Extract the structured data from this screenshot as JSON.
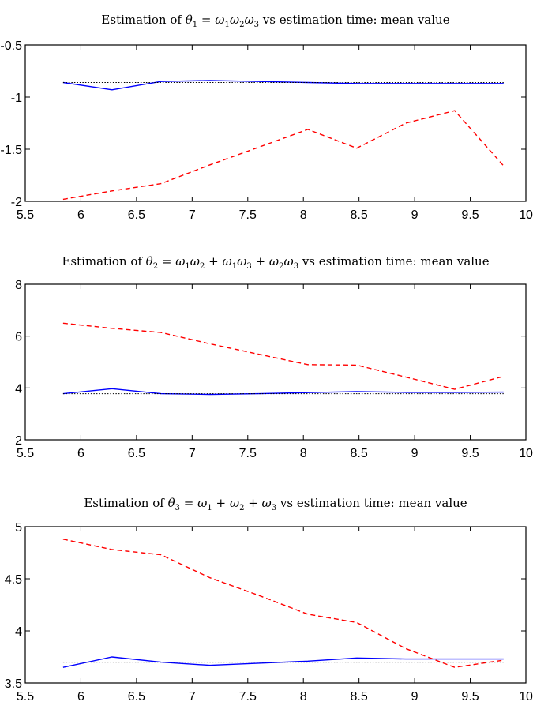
{
  "chart_data": [
    {
      "type": "line",
      "title_parts": [
        "Estimation of ",
        "θ",
        "1",
        " = ",
        "ω",
        "1",
        "ω",
        "2",
        "ω",
        "3",
        " vs estimation time: mean value"
      ],
      "xlim": [
        5.5,
        10
      ],
      "ylim": [
        -2,
        -0.5
      ],
      "xticks": [
        "5.5",
        "6",
        "6.5",
        "7",
        "7.5",
        "8",
        "8.5",
        "9",
        "9.5",
        "10"
      ],
      "yticks": [
        "-2",
        "-1.5",
        "-1",
        "-0.5"
      ],
      "ytick_values": [
        -2,
        -1.5,
        -1,
        -0.5
      ],
      "grid": false,
      "x": [
        5.84,
        6.28,
        6.72,
        7.16,
        7.6,
        8.04,
        8.48,
        8.92,
        9.36,
        9.8
      ],
      "series": [
        {
          "style": "solid",
          "color": "#0000ff",
          "values": [
            -0.86,
            -0.93,
            -0.85,
            -0.84,
            -0.85,
            -0.86,
            -0.87,
            -0.87,
            -0.87,
            -0.87
          ]
        },
        {
          "style": "dashed",
          "color": "#ff0000",
          "values": [
            -1.98,
            -1.9,
            -1.83,
            -1.65,
            -1.48,
            -1.31,
            -1.49,
            -1.25,
            -1.13,
            -1.66
          ]
        },
        {
          "style": "dotted",
          "color": "#000000",
          "values": [
            -0.86,
            -0.86,
            -0.86,
            -0.86,
            -0.86,
            -0.86,
            -0.86,
            -0.86,
            -0.86,
            -0.86
          ]
        }
      ]
    },
    {
      "type": "line",
      "title_parts": [
        "Estimation of ",
        "θ",
        "2",
        " = ",
        "ω",
        "1",
        "ω",
        "2",
        " + ",
        "ω",
        "1",
        "ω",
        "3",
        " + ",
        "ω",
        "2",
        "ω",
        "3",
        " vs estimation time: mean value"
      ],
      "xlim": [
        5.5,
        10
      ],
      "ylim": [
        2,
        8
      ],
      "xticks": [
        "5.5",
        "6",
        "6.5",
        "7",
        "7.5",
        "8",
        "8.5",
        "9",
        "9.5",
        "10"
      ],
      "yticks": [
        "2",
        "4",
        "6",
        "8"
      ],
      "ytick_values": [
        2,
        4,
        6,
        8
      ],
      "grid": false,
      "x": [
        5.84,
        6.28,
        6.72,
        7.16,
        7.6,
        8.04,
        8.48,
        8.92,
        9.36,
        9.8
      ],
      "series": [
        {
          "style": "solid",
          "color": "#0000ff",
          "values": [
            3.78,
            3.97,
            3.78,
            3.75,
            3.78,
            3.82,
            3.86,
            3.83,
            3.83,
            3.84
          ]
        },
        {
          "style": "dashed",
          "color": "#ff0000",
          "values": [
            6.5,
            6.3,
            6.14,
            5.7,
            5.3,
            4.9,
            4.88,
            4.42,
            3.95,
            4.45
          ]
        },
        {
          "style": "dotted",
          "color": "#000000",
          "values": [
            3.78,
            3.78,
            3.78,
            3.78,
            3.78,
            3.78,
            3.78,
            3.78,
            3.78,
            3.78
          ]
        }
      ]
    },
    {
      "type": "line",
      "title_parts": [
        "Estimation of ",
        "θ",
        "3",
        " = ",
        "ω",
        "1",
        " + ",
        "ω",
        "2",
        " + ",
        "ω",
        "3",
        " vs estimation time: mean value"
      ],
      "xlim": [
        5.5,
        10
      ],
      "ylim": [
        3.5,
        5
      ],
      "xticks": [
        "5.5",
        "6",
        "6.5",
        "7",
        "7.5",
        "8",
        "8.5",
        "9",
        "9.5",
        "10"
      ],
      "yticks": [
        "3.5",
        "4",
        "4.5",
        "5"
      ],
      "ytick_values": [
        3.5,
        4,
        4.5,
        5
      ],
      "grid": false,
      "x": [
        5.84,
        6.28,
        6.72,
        7.16,
        7.6,
        8.04,
        8.48,
        8.92,
        9.36,
        9.8
      ],
      "series": [
        {
          "style": "solid",
          "color": "#0000ff",
          "values": [
            3.65,
            3.75,
            3.7,
            3.67,
            3.69,
            3.71,
            3.74,
            3.73,
            3.73,
            3.73
          ]
        },
        {
          "style": "dashed",
          "color": "#ff0000",
          "values": [
            4.88,
            4.78,
            4.73,
            4.51,
            4.34,
            4.16,
            4.08,
            3.83,
            3.65,
            3.72
          ]
        },
        {
          "style": "dotted",
          "color": "#000000",
          "values": [
            3.7,
            3.7,
            3.7,
            3.7,
            3.7,
            3.7,
            3.7,
            3.7,
            3.7,
            3.7
          ]
        }
      ]
    }
  ]
}
